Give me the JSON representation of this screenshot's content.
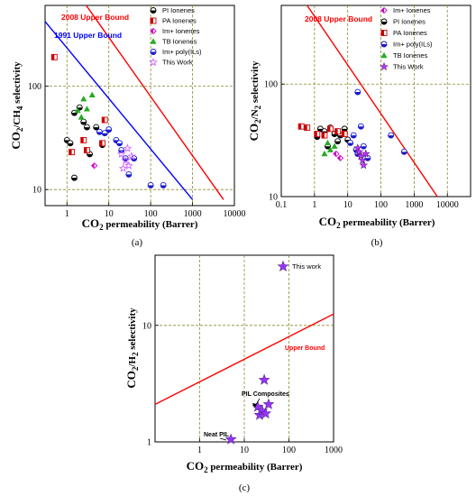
{
  "chart_data": [
    {
      "panel": "(a)",
      "type": "scatter",
      "xlabel_main": "CO",
      "xlabel_sub": "2",
      "xlabel_rest": " permeability (Barrer)",
      "ylabel_main": "CO",
      "ylabel_sub": "2",
      "ylabel_mid": "/CH",
      "ylabel_sub2": "4",
      "ylabel_rest": " selectivity",
      "xscale": "log",
      "yscale": "log",
      "xlim": [
        0.3,
        10000
      ],
      "ylim": [
        7,
        600
      ],
      "xticks": [
        {
          "v": 1,
          "label": "1"
        },
        {
          "v": 10,
          "label": "10"
        },
        {
          "v": 100,
          "label": "100"
        },
        {
          "v": 1000,
          "label": "1000"
        },
        {
          "v": 10000,
          "label": "10000"
        }
      ],
      "yticks": [
        {
          "v": 10,
          "label": "10"
        },
        {
          "v": 100,
          "label": "100"
        }
      ],
      "grid": true,
      "bounds": [
        {
          "name": "2008 Upper Bound",
          "color": "#ff0000",
          "points": [
            [
              1,
              1100
            ],
            [
              5500,
              8
            ]
          ]
        },
        {
          "name": "1991 Upper Bound",
          "color": "#0000ff",
          "points": [
            [
              0.3,
              420
            ],
            [
              1000,
              8
            ]
          ]
        }
      ],
      "legend": [
        {
          "label": "PI Ionenes",
          "symbol": "circle-half",
          "color": "#000000"
        },
        {
          "label": "PA Ionenes",
          "symbol": "square-half",
          "color": "#cc0000"
        },
        {
          "label": "Im+ Ionenes",
          "symbol": "diamond-half",
          "color": "#cc00cc"
        },
        {
          "label": "TB Ionenes",
          "symbol": "triangle",
          "color": "#22aa22"
        },
        {
          "label": "Im+ poly(ILs)",
          "symbol": "circle-half",
          "color": "#1a1acc"
        },
        {
          "label": "This Work",
          "symbol": "star-open",
          "color": "#cc66ff"
        }
      ],
      "series": [
        {
          "name": "PI Ionenes",
          "points": [
            [
              1.5,
              55
            ],
            [
              2,
              62
            ],
            [
              2.5,
              45
            ],
            [
              3,
              40
            ],
            [
              1,
              30
            ],
            [
              1.5,
              13
            ],
            [
              3.5,
              22
            ],
            [
              5,
              40
            ],
            [
              7,
              27
            ],
            [
              1.2,
              28
            ]
          ]
        },
        {
          "name": "PA Ionenes",
          "points": [
            [
              0.5,
              190
            ],
            [
              2.5,
              30
            ],
            [
              3,
              24
            ],
            [
              8,
              47
            ],
            [
              7,
              28
            ],
            [
              1.3,
              23
            ]
          ]
        },
        {
          "name": "Im+ Ionenes",
          "points": [
            [
              4.5,
              17
            ]
          ]
        },
        {
          "name": "TB Ionenes",
          "points": [
            [
              2.5,
              75
            ],
            [
              4,
              82
            ],
            [
              1.8,
              58
            ],
            [
              3,
              60
            ],
            [
              2.2,
              50
            ]
          ]
        },
        {
          "name": "Im+ poly(ILs)",
          "points": [
            [
              6,
              36
            ],
            [
              8,
              35
            ],
            [
              10,
              38
            ],
            [
              15,
              30
            ],
            [
              20,
              24
            ],
            [
              25,
              20
            ],
            [
              18,
              28
            ],
            [
              30,
              14
            ],
            [
              100,
              11
            ],
            [
              200,
              11
            ],
            [
              40,
              20
            ]
          ]
        },
        {
          "name": "This Work",
          "points": [
            [
              20,
              22
            ],
            [
              25,
              19
            ],
            [
              28,
              25
            ],
            [
              30,
              17
            ],
            [
              35,
              21
            ],
            [
              22,
              16
            ]
          ]
        }
      ],
      "annotations": [
        {
          "text": "2008 Upper Bound",
          "color": "#ff0000"
        },
        {
          "text": "1991 Upper Bound",
          "color": "#0000ff"
        }
      ]
    },
    {
      "panel": "(b)",
      "type": "scatter",
      "xlabel_main": "CO",
      "xlabel_sub": "2",
      "xlabel_rest": " permeability (Barrer)",
      "ylabel_main": "CO",
      "ylabel_sub": "2",
      "ylabel_mid": "/N",
      "ylabel_sub2": "2",
      "ylabel_rest": " selectivity",
      "xscale": "log",
      "yscale": "log",
      "xlim": [
        0.1,
        50000
      ],
      "ylim": [
        10,
        500
      ],
      "xticks": [
        {
          "v": 0.1,
          "label": "0.1"
        },
        {
          "v": 1,
          "label": "1"
        },
        {
          "v": 10,
          "label": "10"
        },
        {
          "v": 100,
          "label": "100"
        },
        {
          "v": 1000,
          "label": "1000"
        },
        {
          "v": 10000,
          "label": "10000"
        }
      ],
      "yticks": [
        {
          "v": 10,
          "label": "10"
        },
        {
          "v": 100,
          "label": "100"
        }
      ],
      "grid": true,
      "bounds": [
        {
          "name": "2008 Upper Bound",
          "color": "#ff0000",
          "points": [
            [
              0.6,
              500
            ],
            [
              5000,
              10
            ]
          ]
        }
      ],
      "legend": [
        {
          "label": "Im+ Ionenes",
          "symbol": "diamond-half",
          "color": "#cc00cc"
        },
        {
          "label": "PI Ionenes",
          "symbol": "circle-half",
          "color": "#000000"
        },
        {
          "label": "PA Ionenes",
          "symbol": "square-half",
          "color": "#cc0000"
        },
        {
          "label": "Im+ poly(ILs)",
          "symbol": "circle-half",
          "color": "#1a1acc"
        },
        {
          "label": "TB Ionenes",
          "symbol": "triangle",
          "color": "#22aa22"
        },
        {
          "label": "This Work",
          "symbol": "star-filled",
          "color": "#cc33ff"
        }
      ],
      "series": [
        {
          "name": "Im+ Ionenes",
          "points": [
            [
              4.5,
              24
            ],
            [
              6,
              22
            ]
          ]
        },
        {
          "name": "PI Ionenes",
          "points": [
            [
              1.5,
              40
            ],
            [
              2,
              38
            ],
            [
              3,
              41
            ],
            [
              4,
              36
            ],
            [
              6,
              35
            ],
            [
              10,
              32
            ],
            [
              2.5,
              28
            ],
            [
              5,
              31
            ],
            [
              8,
              40
            ],
            [
              1.2,
              34
            ]
          ]
        },
        {
          "name": "PA Ionenes",
          "points": [
            [
              0.4,
              42
            ],
            [
              0.6,
              41
            ],
            [
              1.2,
              36
            ],
            [
              2,
              35
            ],
            [
              3,
              40
            ],
            [
              5,
              38
            ],
            [
              8,
              36
            ]
          ]
        },
        {
          "name": "Im+ poly(ILs)",
          "points": [
            [
              20,
              85
            ],
            [
              15,
              35
            ],
            [
              25,
              42
            ],
            [
              30,
              28
            ],
            [
              20,
              24
            ],
            [
              40,
              22
            ],
            [
              200,
              35
            ],
            [
              500,
              25
            ],
            [
              12,
              30
            ],
            [
              18,
              26
            ]
          ]
        },
        {
          "name": "TB Ionenes",
          "points": [
            [
              2,
              24
            ],
            [
              3,
              26
            ],
            [
              2.5,
              30
            ],
            [
              4,
              28
            ]
          ]
        },
        {
          "name": "This Work",
          "points": [
            [
              20,
              27
            ],
            [
              25,
              23
            ],
            [
              28,
              21
            ],
            [
              30,
              19
            ],
            [
              22,
              25
            ],
            [
              35,
              24
            ]
          ]
        }
      ]
    },
    {
      "panel": "(c)",
      "type": "scatter",
      "xlabel_main": "CO",
      "xlabel_sub": "2",
      "xlabel_rest": " permeability (Barrer)",
      "ylabel_main": "CO",
      "ylabel_sub": "2",
      "ylabel_mid": "/H",
      "ylabel_sub2": "2",
      "ylabel_rest": " selectivity",
      "xscale": "log",
      "yscale": "log",
      "xlim": [
        0.1,
        1000
      ],
      "ylim": [
        1,
        40
      ],
      "xticks": [
        {
          "v": 1,
          "label": "1"
        },
        {
          "v": 10,
          "label": "10"
        },
        {
          "v": 100,
          "label": "100"
        },
        {
          "v": 1000,
          "label": "1000"
        }
      ],
      "yticks": [
        {
          "v": 1,
          "label": "1"
        },
        {
          "v": 10,
          "label": "10"
        }
      ],
      "grid": true,
      "bounds": [
        {
          "name": "Upper Bound",
          "color": "#ff0000",
          "points": [
            [
              0.1,
              2.1
            ],
            [
              1000,
              12.5
            ]
          ]
        }
      ],
      "legend": [
        {
          "label": "This work",
          "symbol": "star-filled",
          "color": "#9933ff"
        }
      ],
      "series": [
        {
          "name": "This work",
          "points": [
            [
              5,
              1.05
            ],
            [
              20,
              2.0
            ],
            [
              22,
              1.7
            ],
            [
              25,
              1.85
            ],
            [
              28,
              3.4
            ],
            [
              35,
              2.1
            ],
            [
              30,
              1.75
            ]
          ]
        }
      ],
      "annotations": [
        {
          "text": "Upper Bound",
          "color": "#ff0000"
        },
        {
          "text": "PIL Composites",
          "color": "#000000"
        },
        {
          "text": "Neat PIL",
          "color": "#000000"
        }
      ]
    }
  ],
  "captions": [
    "(a)",
    "(b)",
    "(c)"
  ]
}
